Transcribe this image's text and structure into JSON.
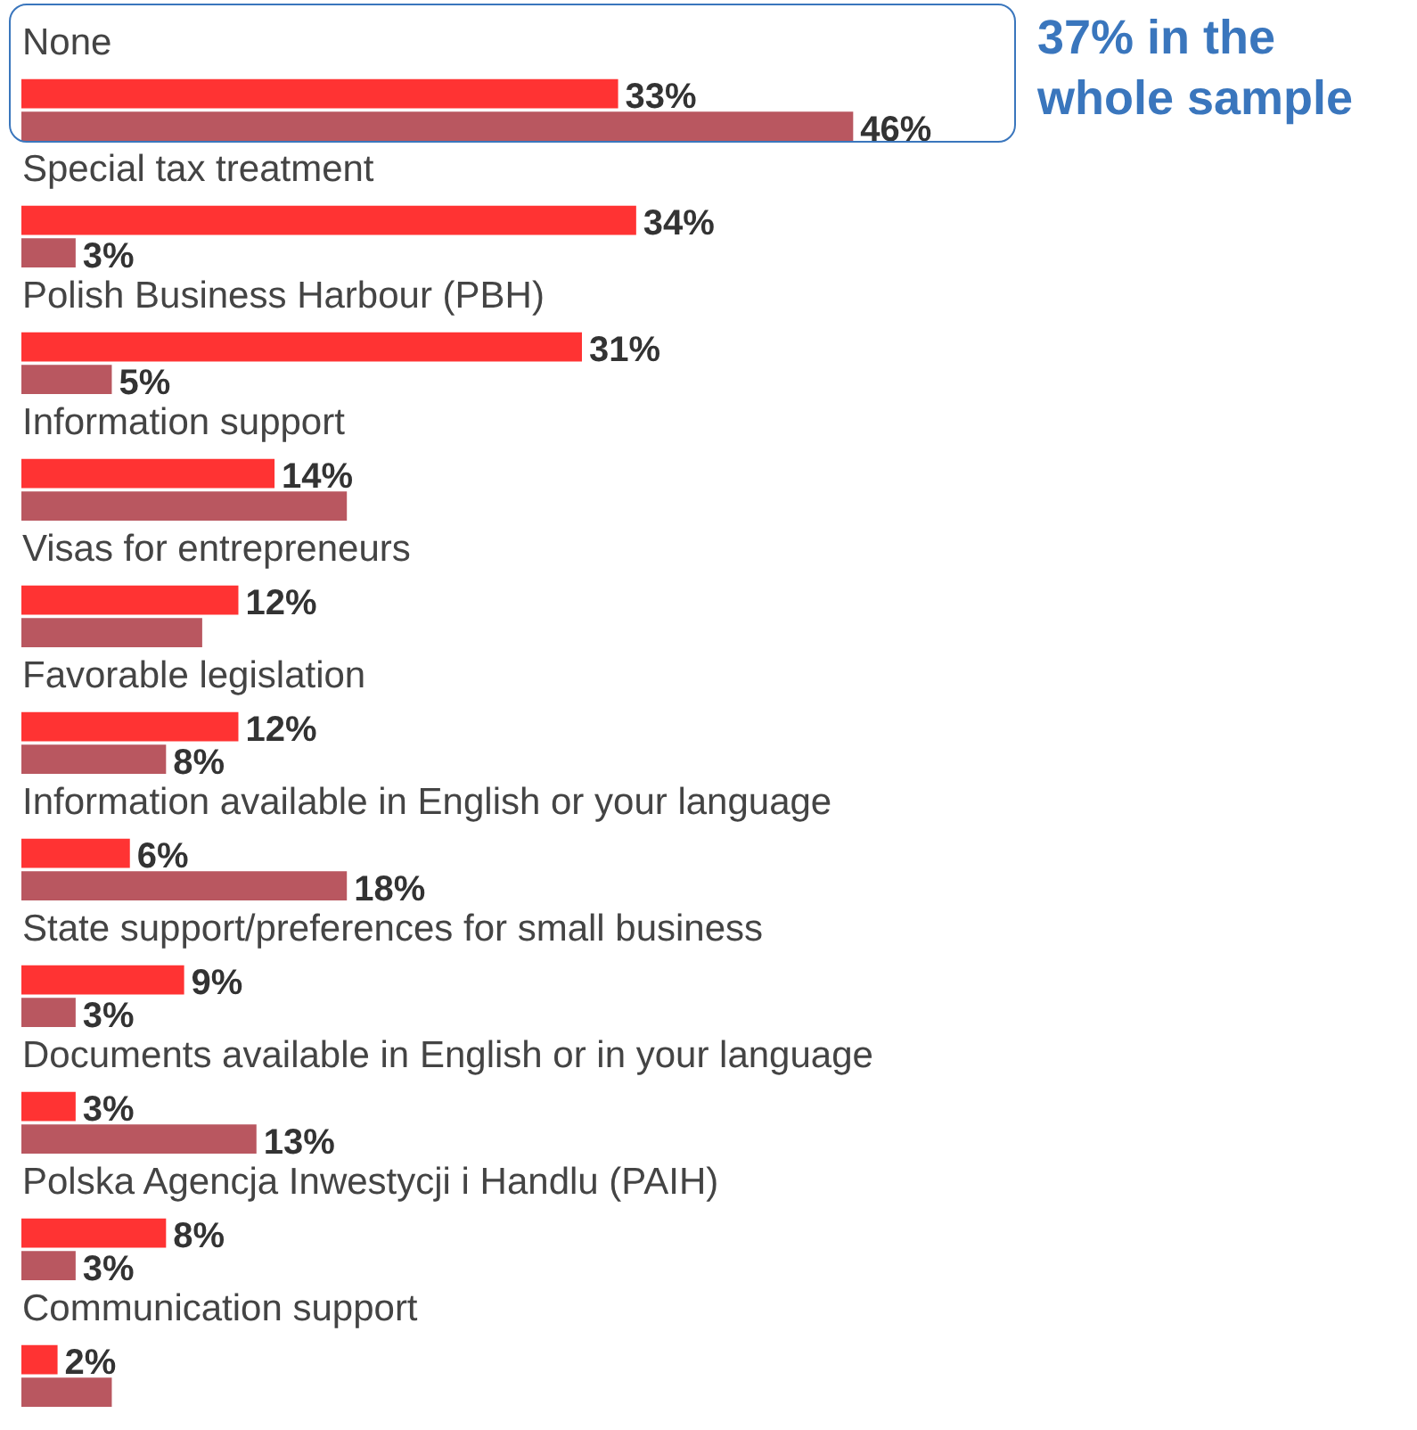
{
  "chart_data": {
    "type": "bar",
    "orientation": "horizontal",
    "categories": [
      "None",
      "Special tax treatment",
      "Polish Business Harbour (PBH)",
      "Information support",
      "Visas for entrepreneurs",
      "Favorable legislation",
      "Information available in English or your language",
      "State support/preferences for small business",
      "Documents available in English or in your language",
      "Polska Agencja Inwestycji i Handlu (PAIH)",
      "Communication support"
    ],
    "series": [
      {
        "color": "#ff3333",
        "values": [
          33,
          34,
          31,
          14,
          12,
          12,
          6,
          9,
          3,
          8,
          2
        ],
        "value_labels": [
          "33%",
          "34%",
          "31%",
          "14%",
          "12%",
          "12%",
          "6%",
          "9%",
          "3%",
          "8%",
          "2%"
        ]
      },
      {
        "color": "#b95760",
        "values": [
          46,
          3,
          5,
          18,
          10,
          8,
          18,
          3,
          13,
          3,
          5
        ],
        "value_labels": [
          "46%",
          "3%",
          "5%",
          null,
          null,
          "8%",
          "18%",
          "3%",
          "13%",
          "3%",
          null
        ]
      }
    ],
    "annotations": [
      "37% in the whole sample"
    ]
  }
}
